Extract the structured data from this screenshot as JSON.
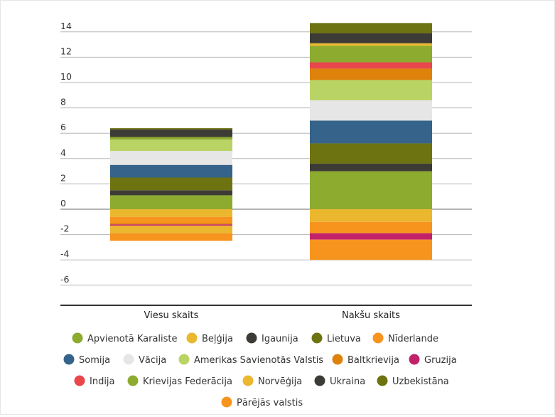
{
  "chart_data": {
    "type": "bar",
    "stacked": true,
    "categories": [
      "Viesu skaits",
      "Nakšu skaits"
    ],
    "ylim": [
      -7,
      14.8
    ],
    "yticks": [
      14,
      12,
      10,
      8,
      6,
      4,
      2,
      0,
      -2,
      -4,
      -6
    ],
    "grid": true,
    "legend_position": "bottom",
    "series": [
      {
        "name": "Apvienotā Karaliste",
        "color": "#8cab2f",
        "values": [
          1.1,
          3.0
        ]
      },
      {
        "name": "Beļģija",
        "color": "#ebb72f",
        "values": [
          -0.6,
          -1.0
        ]
      },
      {
        "name": "Igaunija",
        "color": "#3d3b35",
        "values": [
          0.4,
          0.6
        ]
      },
      {
        "name": "Lietuva",
        "color": "#6e7311",
        "values": [
          1.0,
          1.6
        ]
      },
      {
        "name": "Nīderlande",
        "color": "#f7941e",
        "values": [
          -0.5,
          -0.9
        ]
      },
      {
        "name": "Somija",
        "color": "#356389",
        "values": [
          1.0,
          1.8
        ]
      },
      {
        "name": "Vācija",
        "color": "#e6e6e6",
        "values": [
          1.1,
          1.6
        ]
      },
      {
        "name": "Amerikas Savienotās Valstis",
        "color": "#b9d364",
        "values": [
          0.9,
          1.6
        ]
      },
      {
        "name": "Baltkrievija",
        "color": "#de820c",
        "values": [
          -0.1,
          0.9
        ]
      },
      {
        "name": "Gruzija",
        "color": "#c12169",
        "values": [
          -0.1,
          -0.5
        ]
      },
      {
        "name": "Indija",
        "color": "#e8474c",
        "values": [
          0.0,
          0.5
        ]
      },
      {
        "name": "Krievijas Federācija",
        "color": "#8cab2f",
        "values": [
          0.2,
          1.3
        ]
      },
      {
        "name": "Norvēģija",
        "color": "#ebb72f",
        "values": [
          -0.6,
          0.2
        ]
      },
      {
        "name": "Ukraina",
        "color": "#3d3b35",
        "values": [
          0.6,
          0.8
        ]
      },
      {
        "name": "Uzbekistāna",
        "color": "#6e7311",
        "values": [
          0.1,
          0.8
        ]
      },
      {
        "name": "Pārējās valstis",
        "color": "#f7941e",
        "values": [
          -0.6,
          -1.6
        ]
      }
    ]
  }
}
